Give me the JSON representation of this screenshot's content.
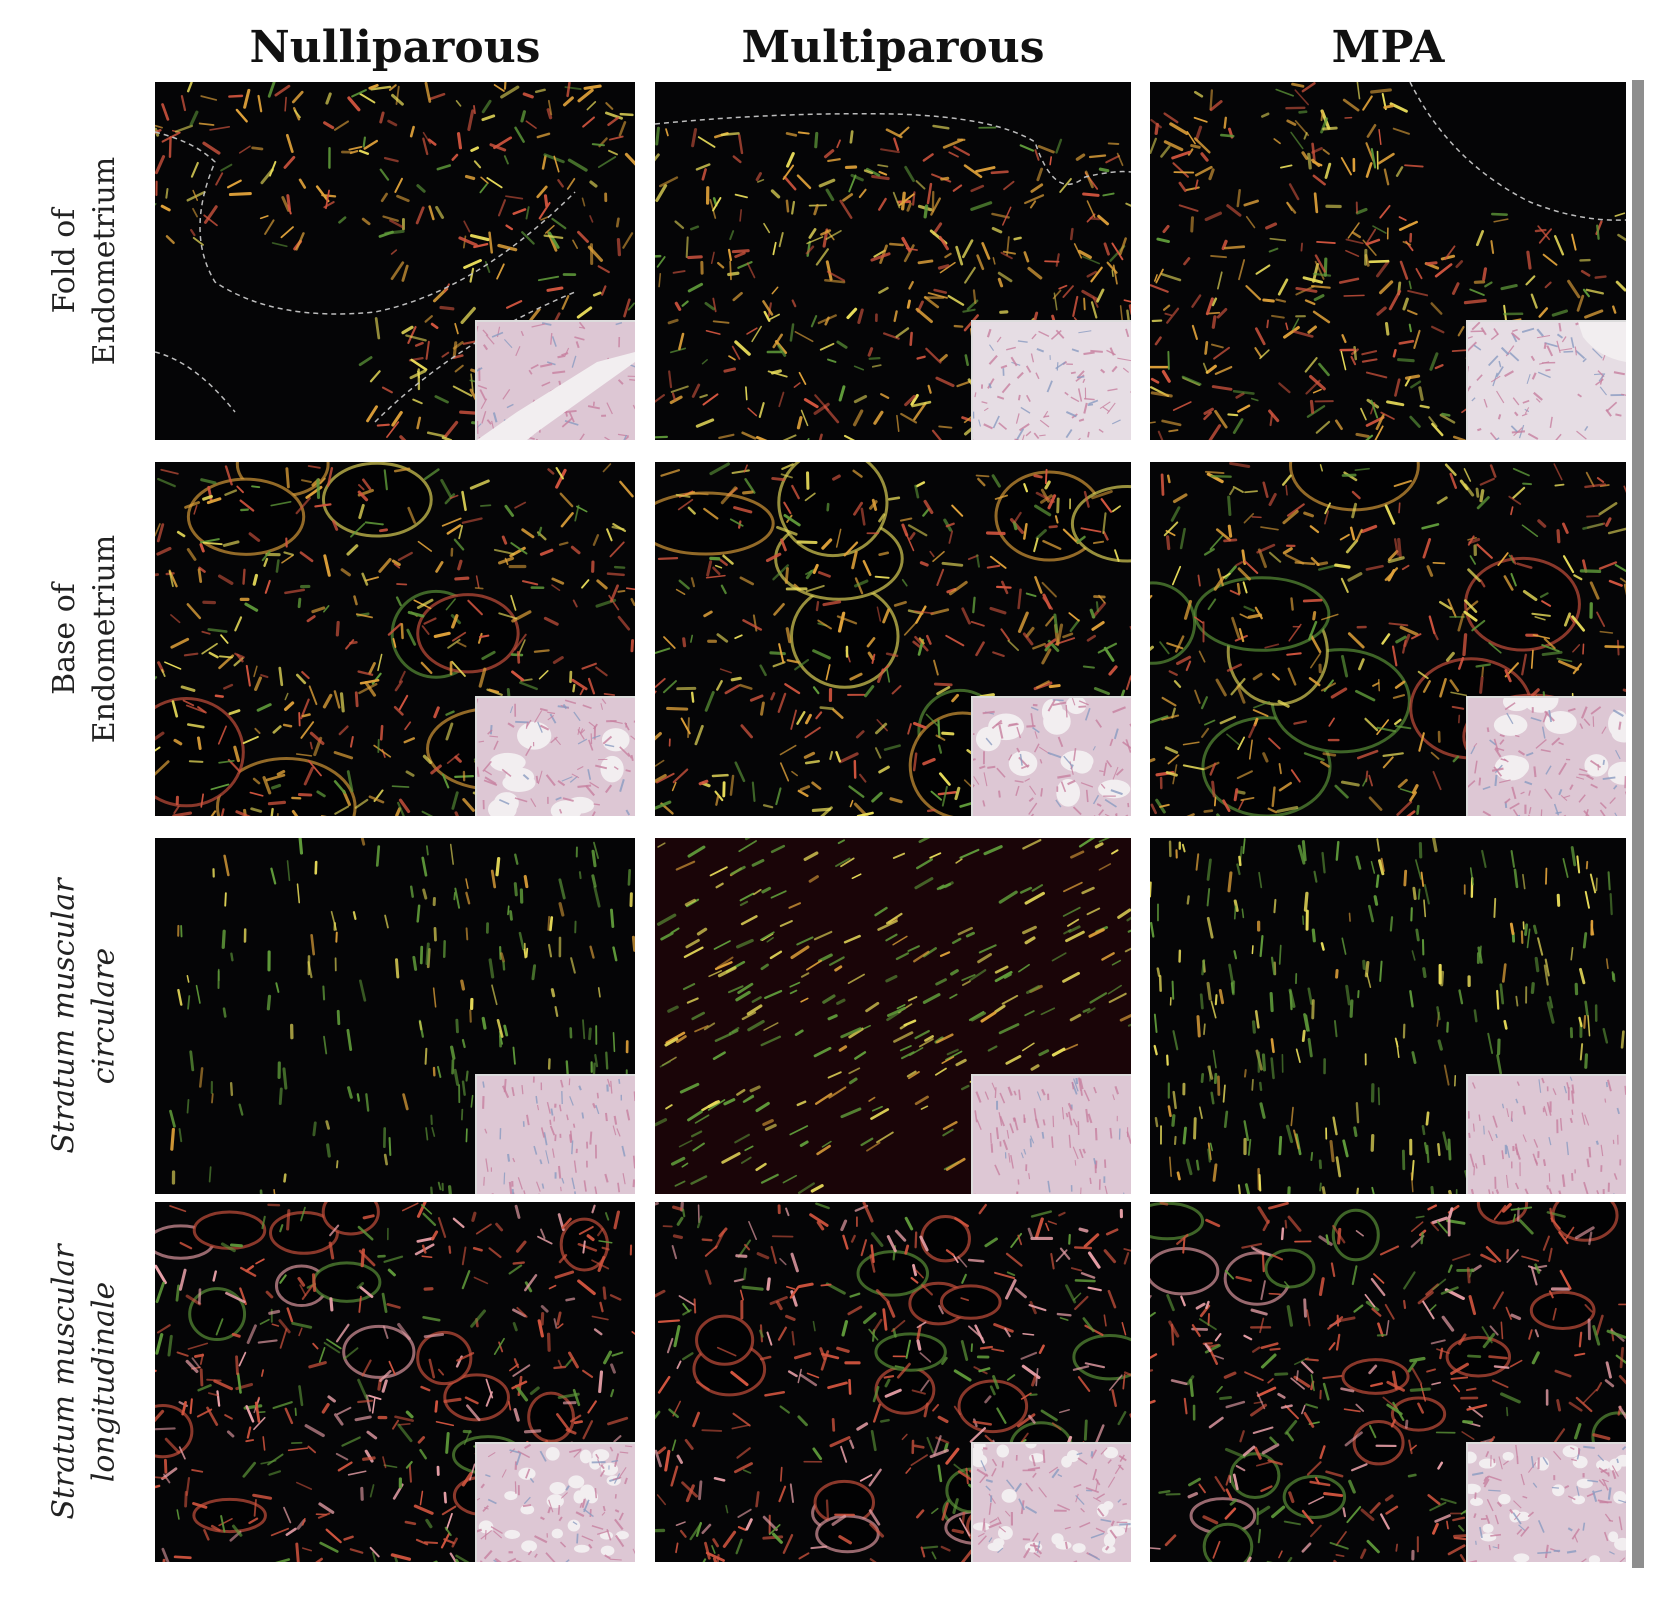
{
  "columns": [
    "Nulliparous",
    "Multiparous",
    "MPA"
  ],
  "rows": [
    {
      "line1": "Fold of",
      "line2": "Endometrium",
      "italic": false
    },
    {
      "line1": "Base of",
      "line2": "Endometrium",
      "italic": false
    },
    {
      "line1": "Stratum muscular",
      "line2": "circulare",
      "italic": true
    },
    {
      "line1": "Stratum muscular",
      "line2": "longitudinale",
      "italic": true
    }
  ],
  "image_kind": "polarized-light micrographs of collagen fibers with brightfield insets",
  "colors": {
    "background_field": "#050506",
    "fiber_red": "#d2553f",
    "fiber_orange": "#e0a23a",
    "fiber_yellow": "#e8dc5a",
    "fiber_green": "#5f9a3a",
    "inset_pink": "#c77f9f",
    "inset_white": "#f2eef0"
  }
}
